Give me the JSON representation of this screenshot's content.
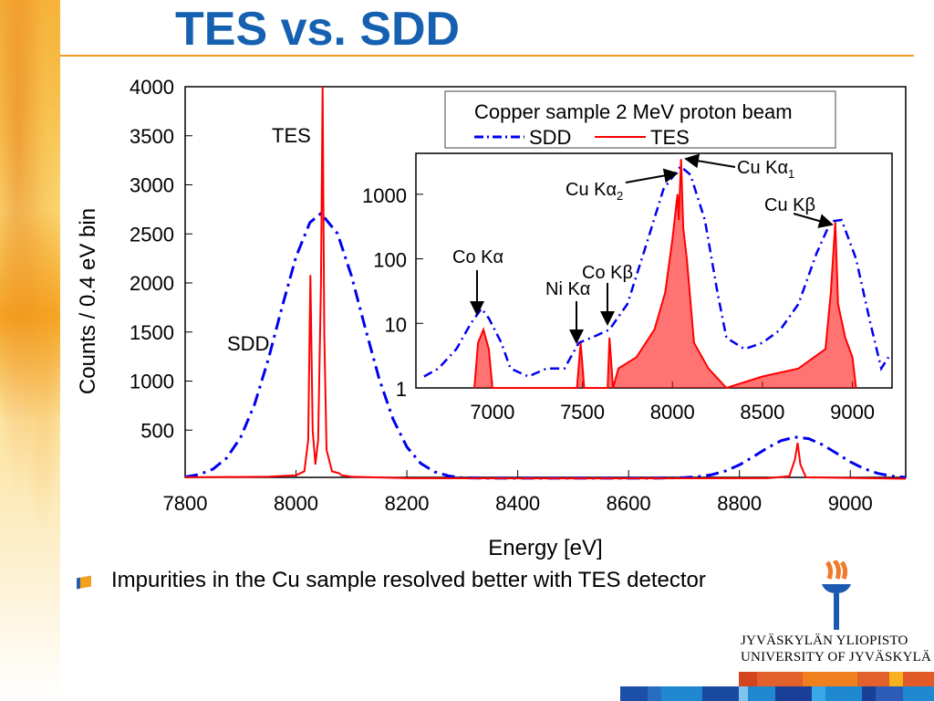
{
  "slide": {
    "title": "TES vs. SDD",
    "bullet": "Impurities in the Cu sample resolved better with TES detector",
    "logo": {
      "line1": "JYVÄSKYLÄN YLIOPISTO",
      "line2": "UNIVERSITY OF JYVÄSKYLÄ"
    },
    "colors": {
      "title": "#1560b0",
      "accent": "#f39a1f",
      "sdd": "#0000ee",
      "tes": "#ff0000"
    }
  },
  "chart_data": [
    {
      "type": "line",
      "xlabel": "Energy [eV]",
      "ylabel": "Counts / 0.4 eV bin",
      "xlim": [
        7800,
        9100
      ],
      "ylim": [
        0,
        4000
      ],
      "xticks": [
        7800,
        8000,
        8200,
        8400,
        8600,
        8800,
        9000
      ],
      "yticks": [
        500,
        1000,
        1500,
        2000,
        2500,
        3000,
        3500,
        4000
      ],
      "annotations": [
        {
          "text": "TES"
        },
        {
          "text": "SDD"
        }
      ],
      "series": [
        {
          "name": "SDD",
          "style": "dash-dot",
          "color": "#0000ee",
          "x": [
            7800,
            7825,
            7850,
            7875,
            7900,
            7925,
            7950,
            7975,
            8000,
            8025,
            8045,
            8075,
            8100,
            8125,
            8150,
            8175,
            8200,
            8225,
            8250,
            8275,
            8300,
            8350,
            8400,
            8500,
            8600,
            8650,
            8700,
            8725,
            8750,
            8775,
            8800,
            8825,
            8850,
            8875,
            8900,
            8925,
            8950,
            8975,
            9000,
            9025,
            9050,
            9075,
            9100
          ],
          "y": [
            23,
            47,
            102,
            217,
            426,
            760,
            1223,
            1756,
            2265,
            2615,
            2710,
            2502,
            2073,
            1539,
            1023,
            612,
            328,
            161,
            74,
            34,
            14,
            10,
            10,
            10,
            10,
            10,
            16,
            25,
            46,
            85,
            146,
            229,
            318,
            393,
            429,
            413,
            351,
            265,
            177,
            107,
            59,
            32,
            19
          ]
        },
        {
          "name": "TES",
          "style": "solid",
          "color": "#ff0000",
          "x": [
            7800,
            7950,
            8000,
            8015,
            8022,
            8026,
            8030,
            8035,
            8040,
            8045,
            8048,
            8051,
            8055,
            8065,
            8078,
            8082,
            8100,
            8200,
            8500,
            8850,
            8890,
            8900,
            8905,
            8910,
            8920,
            9100
          ],
          "y": [
            20,
            25,
            40,
            80,
            400,
            2080,
            500,
            150,
            400,
            2000,
            4000,
            1500,
            300,
            80,
            60,
            40,
            25,
            10,
            8,
            10,
            30,
            200,
            370,
            150,
            20,
            5
          ]
        }
      ]
    },
    {
      "type": "line",
      "inset": true,
      "yscale": "log",
      "xlim": [
        6575,
        9220
      ],
      "ylim": [
        1,
        4300
      ],
      "xticks": [
        7000,
        7500,
        8000,
        8500,
        9000
      ],
      "yticks": [
        1,
        10,
        100,
        1000
      ],
      "ytick_labels": [
        "1",
        "10",
        "100",
        "1000"
      ],
      "legend": {
        "title": "Copper sample 2 MeV proton beam",
        "placement": "top",
        "entries": [
          "SDD",
          "TES"
        ]
      },
      "annotations": [
        {
          "text": "Cu K",
          "greek": "α",
          "sub": "1",
          "x": 8048
        },
        {
          "text": "Cu K",
          "greek": "α",
          "sub": "2",
          "x": 8028
        },
        {
          "text": "Cu K",
          "greek": "β",
          "sub": "",
          "x": 8905
        },
        {
          "text": "Co K",
          "greek": "α",
          "sub": "",
          "x": 6930
        },
        {
          "text": "Ni K",
          "greek": "α",
          "sub": "",
          "x": 7478
        },
        {
          "text": "Co K",
          "greek": "β",
          "sub": "",
          "x": 7649
        }
      ],
      "series": [
        {
          "name": "SDD",
          "style": "dash-dot",
          "color": "#0000ee",
          "x": [
            6620,
            6700,
            6800,
            6880,
            6940,
            6980,
            7050,
            7100,
            7200,
            7300,
            7400,
            7480,
            7550,
            7650,
            7750,
            7850,
            7950,
            8045,
            8100,
            8180,
            8250,
            8300,
            8400,
            8500,
            8600,
            8700,
            8800,
            8880,
            8940,
            9020,
            9100,
            9160,
            9200
          ],
          "y": [
            1.5,
            2,
            4,
            10,
            17,
            12,
            5,
            2,
            1.5,
            2,
            2,
            5,
            6,
            8,
            20,
            150,
            1200,
            2700,
            2000,
            400,
            30,
            6,
            4,
            5,
            8,
            20,
            120,
            380,
            400,
            100,
            10,
            2,
            3
          ]
        },
        {
          "name": "TES",
          "style": "solid",
          "color": "#ff0000",
          "x": [
            6900,
            6920,
            6950,
            6980,
            7000,
            7470,
            7490,
            7510,
            7640,
            7650,
            7670,
            7700,
            7800,
            7900,
            7960,
            8000,
            8028,
            8035,
            8048,
            8060,
            8080,
            8120,
            8200,
            8300,
            8500,
            8700,
            8850,
            8880,
            8905,
            8920,
            8960,
            9000,
            9020
          ],
          "y": [
            1,
            5,
            8,
            4,
            1,
            1,
            5,
            1,
            1,
            6,
            1,
            2,
            3,
            8,
            30,
            200,
            1000,
            400,
            3500,
            300,
            100,
            5,
            2,
            1,
            1.5,
            2,
            4,
            30,
            370,
            20,
            6,
            3,
            1
          ]
        }
      ]
    }
  ]
}
